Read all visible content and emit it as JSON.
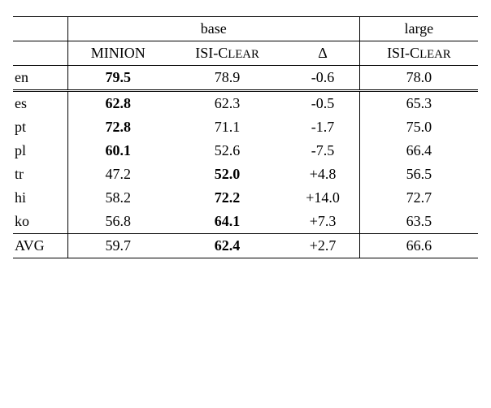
{
  "header": {
    "base": "base",
    "large": "large",
    "minion": "MINION",
    "isiclear_html": "ISI-C<span style='font-size:0.82em'>LEAR</span>",
    "delta": "Δ"
  },
  "rows": {
    "en": {
      "label": "en",
      "minion": "79.5",
      "base_isi": "78.9",
      "delta": "-0.6",
      "large_isi": "78.0",
      "bold": "minion"
    },
    "es": {
      "label": "es",
      "minion": "62.8",
      "base_isi": "62.3",
      "delta": "-0.5",
      "large_isi": "65.3",
      "bold": "minion"
    },
    "pt": {
      "label": "pt",
      "minion": "72.8",
      "base_isi": "71.1",
      "delta": "-1.7",
      "large_isi": "75.0",
      "bold": "minion"
    },
    "pl": {
      "label": "pl",
      "minion": "60.1",
      "base_isi": "52.6",
      "delta": "-7.5",
      "large_isi": "66.4",
      "bold": "minion"
    },
    "tr": {
      "label": "tr",
      "minion": "47.2",
      "base_isi": "52.0",
      "delta": "+4.8",
      "large_isi": "56.5",
      "bold": "base_isi"
    },
    "hi": {
      "label": "hi",
      "minion": "58.2",
      "base_isi": "72.2",
      "delta": "+14.0",
      "large_isi": "72.7",
      "bold": "base_isi"
    },
    "ko": {
      "label": "ko",
      "minion": "56.8",
      "base_isi": "64.1",
      "delta": "+7.3",
      "large_isi": "63.5",
      "bold": "base_isi"
    },
    "avg": {
      "label": "AVG",
      "minion": "59.7",
      "base_isi": "62.4",
      "delta": "+2.7",
      "large_isi": "66.6",
      "bold": "base_isi"
    }
  },
  "colwidths": {
    "label": 60,
    "minion": 110,
    "base_isi": 130,
    "delta": 80,
    "large_isi": 130
  }
}
